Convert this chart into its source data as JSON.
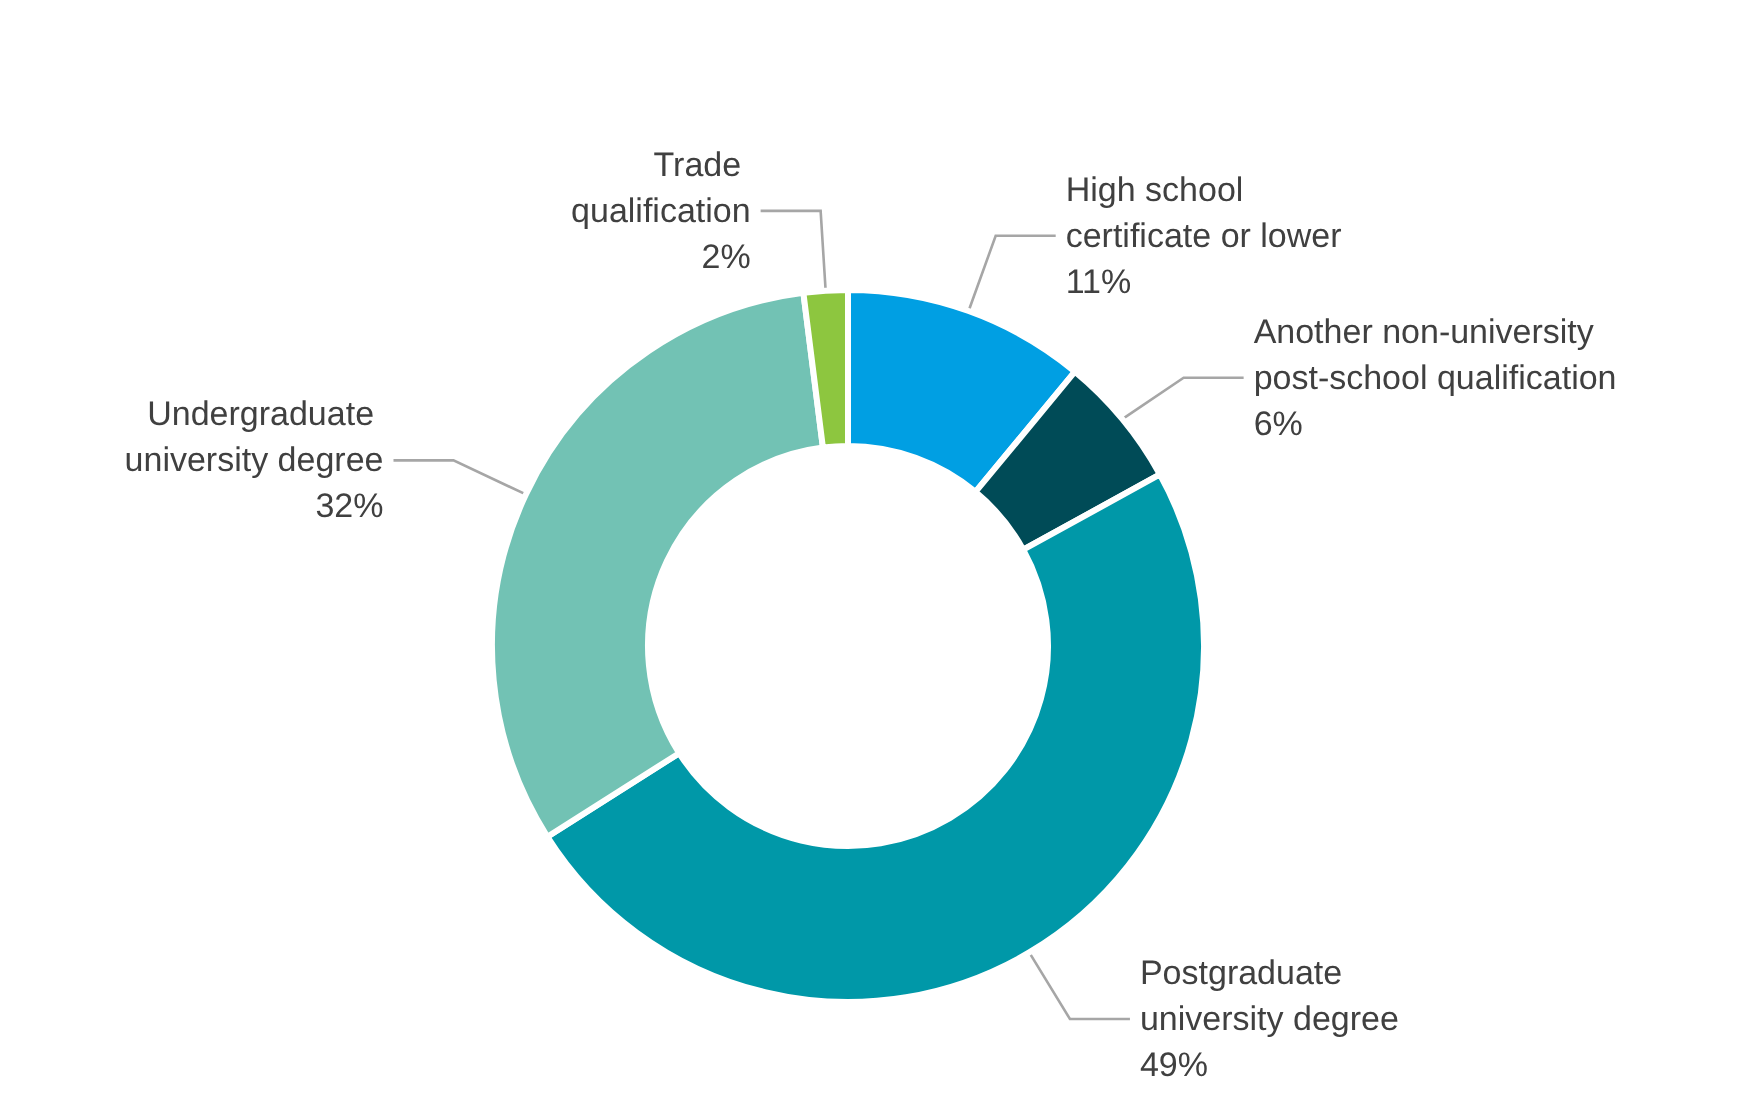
{
  "chart_data": {
    "type": "donut",
    "categories": [
      "High school certificate or lower",
      "Another non-university post-school qualification",
      "Postgraduate university degree",
      "Undergraduate university degree",
      "Trade qualification"
    ],
    "values": [
      11,
      6,
      49,
      32,
      2
    ],
    "colors": [
      "#009fe3",
      "#004b57",
      "#0098a8",
      "#72c2b4",
      "#8dc63f"
    ],
    "value_labels": [
      "11%",
      "6%",
      "49%",
      "32%",
      "2%"
    ],
    "legend": false
  }
}
